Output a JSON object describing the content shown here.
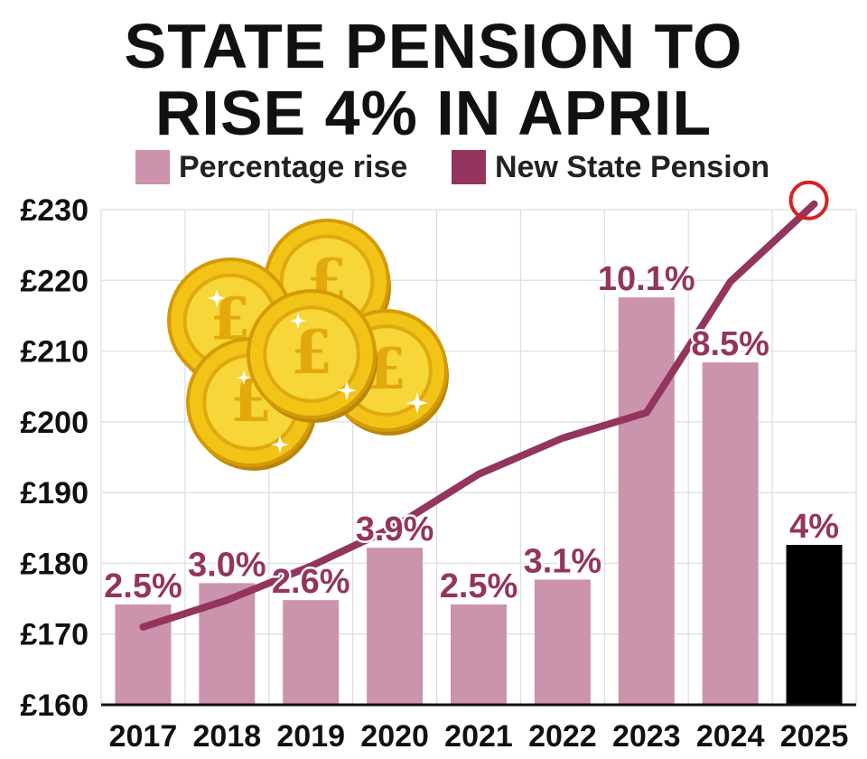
{
  "chart_data": {
    "type": "bar",
    "title_lines": [
      "STATE PENSION TO",
      "RISE 4% IN APRIL"
    ],
    "legend": [
      {
        "name": "Percentage rise",
        "color": "#cc93ad"
      },
      {
        "name": "New State Pension",
        "color": "#93355f"
      }
    ],
    "categories": [
      "2017",
      "2018",
      "2019",
      "2020",
      "2021",
      "2022",
      "2023",
      "2024",
      "2025"
    ],
    "ylim": [
      160,
      230
    ],
    "yticks": [
      "£160",
      "£170",
      "£180",
      "£190",
      "£200",
      "£210",
      "£220",
      "£230"
    ],
    "ytick_values": [
      160,
      170,
      180,
      190,
      200,
      210,
      220,
      230
    ],
    "series": [
      {
        "name": "Percentage rise",
        "type": "bar",
        "bar_heights": [
          174.2,
          177.2,
          174.8,
          182.2,
          174.2,
          177.7,
          217.6,
          208.4,
          182.6
        ],
        "labels": [
          "2.5%",
          "3.0%",
          "2.6%",
          "3.9%",
          "2.5%",
          "3.1%",
          "10.1%",
          "8.5%",
          "4%"
        ],
        "colors": [
          "#cc93ad",
          "#cc93ad",
          "#cc93ad",
          "#cc93ad",
          "#cc93ad",
          "#cc93ad",
          "#cc93ad",
          "#cc93ad",
          "#000000"
        ],
        "label_colors": [
          "#93355f",
          "#93355f",
          "#93355f",
          "#93355f",
          "#93355f",
          "#93355f",
          "#93355f",
          "#93355f",
          "#93355f"
        ]
      },
      {
        "name": "New State Pension",
        "type": "line",
        "values": [
          171.0,
          174.8,
          179.6,
          185.2,
          192.6,
          197.7,
          201.3,
          219.8,
          230.8
        ],
        "color": "#93355f",
        "highlight_last": true,
        "highlight_color": "#d42222"
      }
    ],
    "xlabel": "",
    "ylabel": "",
    "grid": true
  }
}
